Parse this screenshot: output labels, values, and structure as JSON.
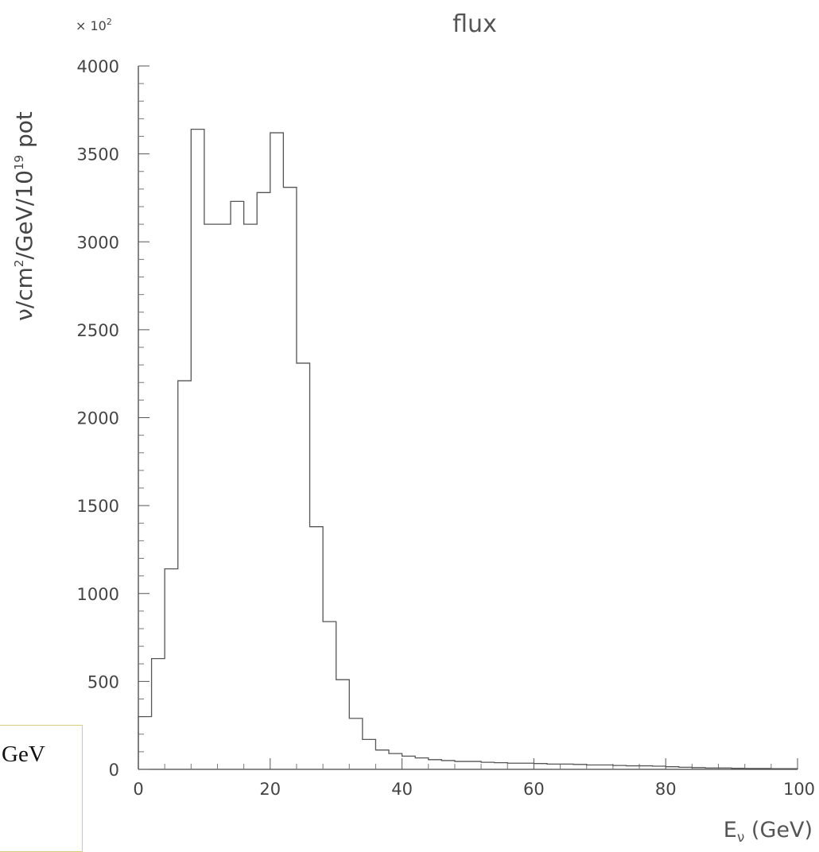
{
  "note": {
    "text": "GeV"
  },
  "chart_data": {
    "type": "histogram",
    "title": "flux",
    "ylabel_prefix": "ν/cm",
    "ylabel_exp2": "2",
    "ylabel_middle": "/GeV/10",
    "ylabel_exp19": "19",
    "ylabel_suffix": " pot",
    "xlabel_main": "E",
    "xlabel_sub": "ν",
    "xlabel_suffix": " (GeV)",
    "y_scale_label": "× 10",
    "y_scale_exp": "2",
    "xlim": [
      0,
      100
    ],
    "ylim": [
      0,
      4000
    ],
    "x_ticks": [
      0,
      20,
      40,
      60,
      80,
      100
    ],
    "x_tick_labels": [
      "0",
      "20",
      "40",
      "60",
      "80",
      "100"
    ],
    "y_ticks": [
      0,
      500,
      1000,
      1500,
      2000,
      2500,
      3000,
      3500,
      4000
    ],
    "y_tick_labels": [
      "0",
      "500",
      "1000",
      "1500",
      "2000",
      "2500",
      "3000",
      "3500",
      "4000"
    ],
    "bin_width": 2,
    "bin_edges_start": 0,
    "values": [
      300,
      630,
      1140,
      2210,
      3640,
      3100,
      3100,
      3230,
      3100,
      3280,
      3620,
      3310,
      2310,
      1380,
      840,
      510,
      290,
      170,
      110,
      90,
      75,
      65,
      55,
      50,
      45,
      45,
      40,
      38,
      35,
      35,
      33,
      30,
      30,
      28,
      25,
      25,
      22,
      20,
      20,
      18,
      15,
      12,
      10,
      8,
      8,
      6,
      5,
      5,
      4,
      4
    ]
  }
}
